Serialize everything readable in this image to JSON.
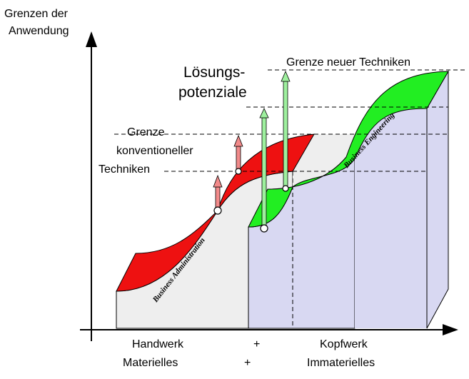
{
  "axes": {
    "y_label_line1": "Grenzen der",
    "y_label_line2": "Anwendung"
  },
  "labels": {
    "neue_techniken": "Grenze neuer Techniken",
    "loesung_line1": "Lösungs-",
    "loesung_line2": "potenziale",
    "konv_line1": "Grenze",
    "konv_line2": "konventioneller",
    "konv_line3": "Techniken",
    "business_admin": "Business Administration",
    "business_eng": "Business Engineering"
  },
  "x_axis": {
    "row1_left": "Handwerk",
    "row1_plus": "+",
    "row1_right": "Kopfwerk",
    "row2_left": "Materielles",
    "row2_plus": "+",
    "row2_right": "Immaterielles"
  },
  "colors": {
    "red_band": "#ee1111",
    "green_band": "#22ee22",
    "left_block": "#eeeeee",
    "right_block": "#d8d8f2",
    "red_arrow": "#f28a8a",
    "green_arrow": "#9ef09e"
  }
}
